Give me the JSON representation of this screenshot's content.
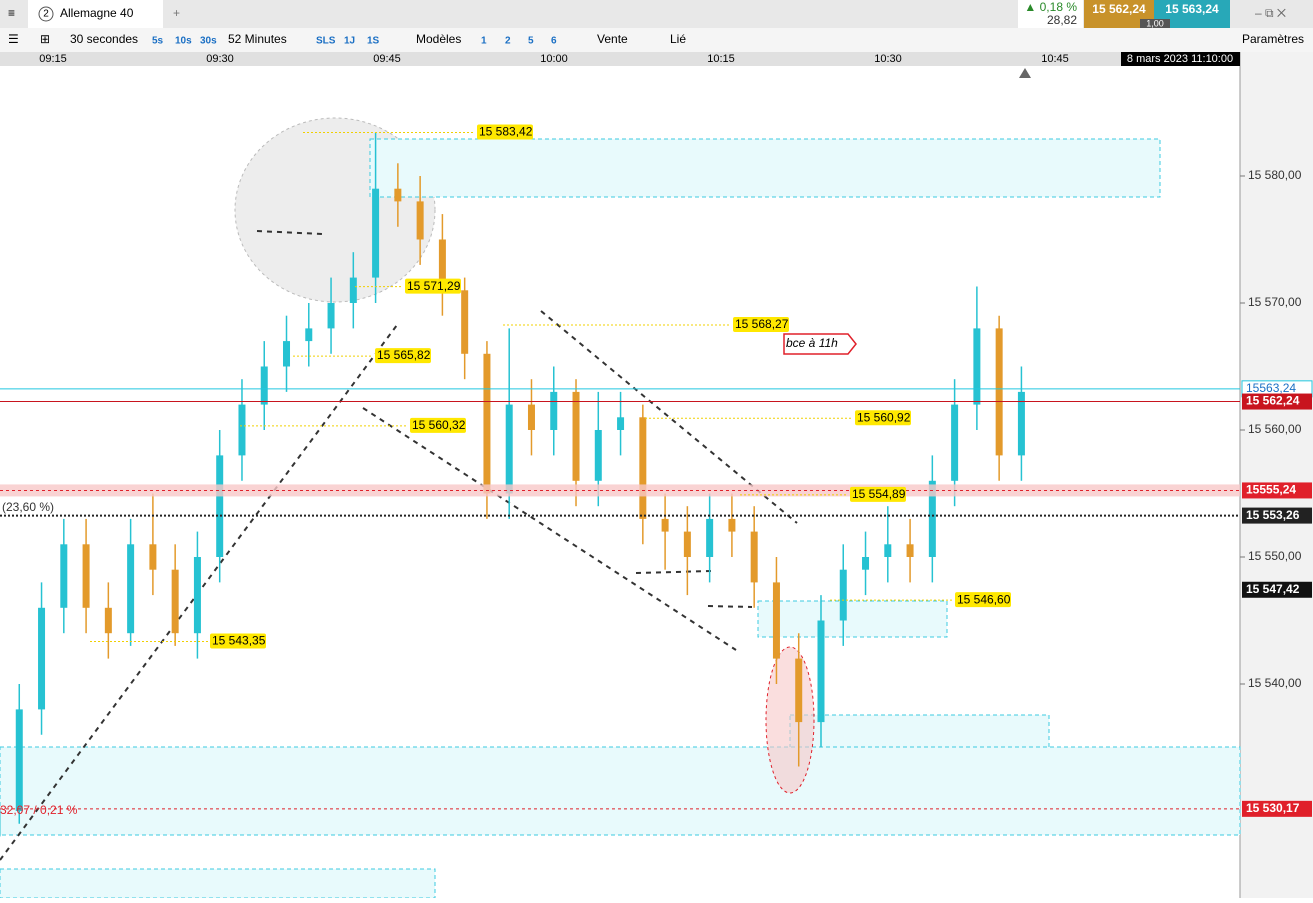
{
  "window": {
    "tab_number": "2",
    "instrument": "Allemagne 40",
    "change": "▲ 0,18 %",
    "change_points": "28,82",
    "bid": "15 562,24",
    "spread": "1,00",
    "ask": "15 563,24"
  },
  "toolbar": {
    "period": "30 secondes",
    "quick_periods": [
      "5s",
      "10s",
      "30s"
    ],
    "range": "52 Minutes",
    "quick_ranges": [
      "SLS",
      "1J",
      "1S"
    ],
    "models": "Modèles",
    "layouts": [
      "1",
      "2",
      "5",
      "6"
    ],
    "side": "Vente",
    "link": "Lié",
    "settings": "Paramètres"
  },
  "chart_data": {
    "type": "candlestick",
    "time_labels": [
      "09:15",
      "09:30",
      "09:45",
      "10:00",
      "10:15",
      "10:30",
      "10:45"
    ],
    "date_label": "8 mars 2023 11:10:00",
    "ylim": [
      15523.15,
      15588.66
    ],
    "yticks": [
      {
        "value": 15580,
        "label": "15 580,00"
      },
      {
        "value": 15570,
        "label": "15 570,00"
      },
      {
        "value": 15560,
        "label": "15 560,00"
      },
      {
        "value": 15550,
        "label": "15 550,00"
      },
      {
        "value": 15540,
        "label": "15 540,00"
      }
    ],
    "up_color": "#26c2d2",
    "down_color": "#e39a2b",
    "open": [
      15528,
      15530,
      15538,
      15546,
      15551,
      15546,
      15544,
      15551,
      15549,
      15544,
      15550,
      15558,
      15562,
      15565,
      15567,
      15568,
      15570,
      15572,
      15579,
      15578,
      15575,
      15571,
      15566,
      15555,
      15562,
      15560,
      15563,
      15556,
      15560,
      15561,
      15553,
      15552,
      15550,
      15553,
      15552,
      15548,
      15542,
      15537,
      15545,
      15549,
      15550,
      15551,
      15550,
      15556,
      15562,
      15568,
      15558
    ],
    "high": [
      15531.5,
      15540,
      15548,
      15553,
      15553,
      15548,
      15553,
      15555,
      15551,
      15552,
      15560,
      15564,
      15567,
      15569,
      15570,
      15572,
      15574,
      15583.4,
      15581,
      15580,
      15577,
      15572,
      15567,
      15568,
      15564,
      15565,
      15564,
      15563,
      15563,
      15562,
      15555,
      15554,
      15555,
      15555,
      15554,
      15550,
      15544,
      15547,
      15551,
      15552,
      15554,
      15553,
      15558,
      15564,
      15571.3,
      15569,
      15565
    ],
    "low": [
      15527,
      15529,
      15536,
      15544,
      15544,
      15542,
      15543,
      15547,
      15543,
      15542,
      15548,
      15556,
      15560,
      15563,
      15565,
      15566,
      15568,
      15570,
      15576,
      15573,
      15569,
      15564,
      15553,
      15553,
      15558,
      15558,
      15554,
      15554,
      15558,
      15551,
      15549,
      15547,
      15548,
      15550,
      15546,
      15540,
      15533.5,
      15535,
      15543,
      15547,
      15548,
      15548,
      15548,
      15554,
      15560,
      15556,
      15556
    ],
    "close": [
      15530,
      15538,
      15546,
      15551,
      15546,
      15544,
      15551,
      15549,
      15544,
      15550,
      15558,
      15562,
      15565,
      15567,
      15568,
      15570,
      15572,
      15579,
      15578,
      15575,
      15571,
      15566,
      15555,
      15562,
      15560,
      15563,
      15556,
      15560,
      15561,
      15553,
      15552,
      15550,
      15553,
      15552,
      15548,
      15542,
      15537,
      15545,
      15549,
      15550,
      15551,
      15550,
      15556,
      15562,
      15568,
      15558,
      15563
    ],
    "levels": [
      {
        "value": 15583.42,
        "label": "15 583,42"
      },
      {
        "value": 15571.29,
        "label": "15 571,29"
      },
      {
        "value": 15565.82,
        "label": "15 565,82"
      },
      {
        "value": 15560.32,
        "label": "15 560,32"
      },
      {
        "value": 15568.27,
        "label": "15 568,27"
      },
      {
        "value": 15560.92,
        "label": "15 560,92"
      },
      {
        "value": 15554.89,
        "label": "15 554,89"
      },
      {
        "value": 15546.6,
        "label": "15 546,60"
      },
      {
        "value": 15543.35,
        "label": "15 543,35"
      }
    ],
    "price_lines": [
      {
        "value": 15563.24,
        "label": "15563,24",
        "color": "#22c8e0"
      },
      {
        "value": 15562.24,
        "label": "15 562,24",
        "color": "#c8141e"
      },
      {
        "value": 15555.24,
        "label": "15555,24",
        "color": "#e0202a"
      },
      {
        "value": 15553.26,
        "label": "15 553,26",
        "color": "#222222"
      },
      {
        "value": 15547.42,
        "label": "15 547,42",
        "color": "#111111"
      },
      {
        "value": 15530.17,
        "label": "15 530,17",
        "color": "#e0202a"
      }
    ],
    "fib_label": "(23,60 %)",
    "bottom_label": "32,07 / 0,21 %",
    "annotation": "bce à 11h"
  }
}
